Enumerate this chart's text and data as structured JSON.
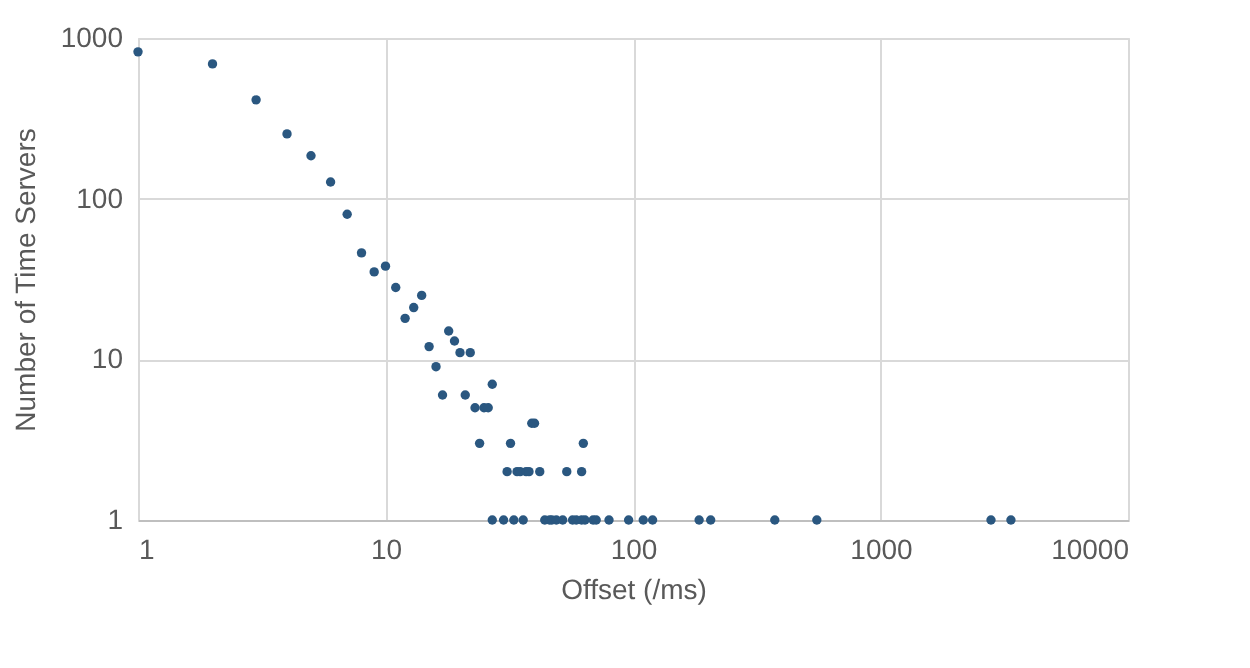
{
  "chart_data": {
    "type": "scatter",
    "xlabel": "Offset (/ms)",
    "ylabel": "Number of Time Servers",
    "log": "xy",
    "xlim": [
      1,
      10000
    ],
    "xticks": [
      1,
      10,
      100,
      1000,
      10000
    ],
    "ylim": [
      1,
      1000
    ],
    "yticks": [
      1,
      10,
      100,
      1000
    ],
    "grid": true,
    "marker": "circle",
    "series": [
      {
        "color": "#2a5780",
        "x": [
          1,
          2,
          3,
          4,
          5,
          6,
          7,
          8,
          9,
          10,
          11,
          12,
          13,
          14,
          15,
          16,
          17,
          18,
          19,
          20,
          21,
          22,
          23,
          24,
          25,
          26,
          27,
          27,
          30,
          33,
          36,
          44,
          46,
          47,
          49,
          52,
          57,
          59,
          62,
          64,
          69,
          71,
          80,
          96,
          110,
          120,
          185,
          206,
          374,
          553,
          2795,
          3365,
          31,
          34,
          35,
          37,
          38,
          42,
          54,
          62,
          32,
          63,
          39,
          40
        ],
        "values": [
          820,
          690,
          412,
          253,
          185,
          127,
          80,
          46,
          35,
          38,
          28,
          18,
          21,
          25,
          12,
          9,
          6,
          15,
          13,
          11,
          6,
          11,
          5,
          3,
          5,
          5,
          7,
          1,
          1,
          1,
          1,
          1,
          1,
          1,
          1,
          1,
          1,
          1,
          1,
          1,
          1,
          1,
          1,
          1,
          1,
          1,
          1,
          1,
          1,
          1,
          1,
          1,
          2,
          2,
          2,
          2,
          2,
          2,
          2,
          2,
          3,
          3,
          4,
          4
        ]
      }
    ]
  }
}
